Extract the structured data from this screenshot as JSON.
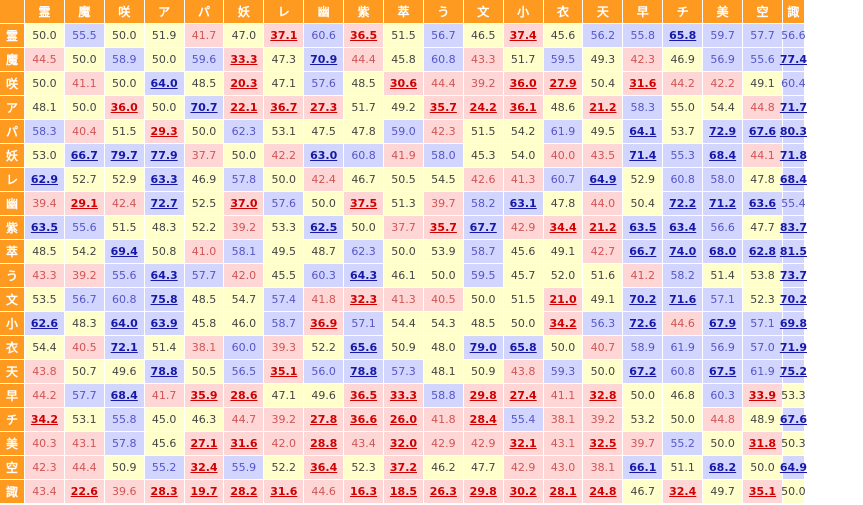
{
  "chart_data": {
    "type": "heatmap",
    "title": "",
    "header_labels": [
      "霊",
      "魔",
      "咲",
      "ア",
      "パ",
      "妖",
      "レ",
      "幽",
      "紫",
      "萃",
      "う",
      "文",
      "小",
      "衣",
      "天",
      "早",
      "チ",
      "美",
      "空",
      "諏"
    ],
    "labels": [
      "霊",
      "魔",
      "咲",
      "ア",
      "パ",
      "妖",
      "レ",
      "幽",
      "紫",
      "萃",
      "う",
      "文",
      "小",
      "衣",
      "天",
      "早",
      "チ",
      "美",
      "空",
      "諏"
    ],
    "values": [
      [
        50.0,
        55.5,
        50.0,
        51.9,
        41.7,
        47.0,
        37.1,
        60.6,
        36.5,
        51.5,
        56.7,
        46.5,
        37.4,
        45.6,
        56.2,
        55.8,
        65.8,
        59.7,
        57.7,
        56.6
      ],
      [
        44.5,
        50.0,
        58.9,
        50.0,
        59.6,
        33.3,
        47.3,
        70.9,
        44.4,
        45.8,
        60.8,
        43.3,
        51.7,
        59.5,
        49.3,
        42.3,
        46.9,
        56.9,
        55.6,
        77.4
      ],
      [
        50.0,
        41.1,
        50.0,
        64.0,
        48.5,
        20.3,
        47.1,
        57.6,
        48.5,
        30.6,
        44.4,
        39.2,
        36.0,
        27.9,
        50.4,
        31.6,
        44.2,
        42.2,
        49.1,
        60.4
      ],
      [
        48.1,
        50.0,
        36.0,
        50.0,
        70.7,
        22.1,
        36.7,
        27.3,
        51.7,
        49.2,
        35.7,
        24.2,
        36.1,
        48.6,
        21.2,
        58.3,
        55.0,
        54.4,
        44.8,
        71.7
      ],
      [
        58.3,
        40.4,
        51.5,
        29.3,
        50.0,
        62.3,
        53.1,
        47.5,
        47.8,
        59.0,
        42.3,
        51.5,
        54.2,
        61.9,
        49.5,
        64.1,
        53.7,
        72.9,
        67.6,
        80.3
      ],
      [
        53.0,
        66.7,
        79.7,
        77.9,
        37.7,
        50.0,
        42.2,
        63.0,
        60.8,
        41.9,
        58.0,
        45.3,
        54.0,
        40.0,
        43.5,
        71.4,
        55.3,
        68.4,
        44.1,
        71.8
      ],
      [
        62.9,
        52.7,
        52.9,
        63.3,
        46.9,
        57.8,
        50.0,
        42.4,
        46.7,
        50.5,
        54.5,
        42.6,
        41.3,
        60.7,
        64.9,
        52.9,
        60.8,
        58.0,
        47.8,
        68.4
      ],
      [
        39.4,
        29.1,
        42.4,
        72.7,
        52.5,
        37.0,
        57.6,
        50.0,
        37.5,
        51.3,
        39.7,
        58.2,
        63.1,
        47.8,
        44.0,
        50.4,
        72.2,
        71.2,
        63.6,
        55.4
      ],
      [
        63.5,
        55.6,
        51.5,
        48.3,
        52.2,
        39.2,
        53.3,
        62.5,
        50.0,
        37.7,
        35.7,
        67.7,
        42.9,
        34.4,
        21.2,
        63.5,
        63.4,
        56.6,
        47.7,
        83.7
      ],
      [
        48.5,
        54.2,
        69.4,
        50.8,
        41.0,
        58.1,
        49.5,
        48.7,
        62.3,
        50.0,
        53.9,
        58.7,
        45.6,
        49.1,
        42.7,
        66.7,
        74.0,
        68.0,
        62.8,
        81.5
      ],
      [
        43.3,
        39.2,
        55.6,
        64.3,
        57.7,
        42.0,
        45.5,
        60.3,
        64.3,
        46.1,
        50.0,
        59.5,
        45.7,
        52.0,
        51.6,
        41.2,
        58.2,
        51.4,
        53.8,
        73.7
      ],
      [
        53.5,
        56.7,
        60.8,
        75.8,
        48.5,
        54.7,
        57.4,
        41.8,
        32.3,
        41.3,
        40.5,
        50.0,
        51.5,
        21.0,
        49.1,
        70.2,
        71.6,
        57.1,
        52.3,
        70.2
      ],
      [
        62.6,
        48.3,
        64.0,
        63.9,
        45.8,
        46.0,
        58.7,
        36.9,
        57.1,
        54.4,
        54.3,
        48.5,
        50.0,
        34.2,
        56.3,
        72.6,
        44.6,
        67.9,
        57.1,
        69.8
      ],
      [
        54.4,
        40.5,
        72.1,
        51.4,
        38.1,
        60.0,
        39.3,
        52.2,
        65.6,
        50.9,
        48.0,
        79.0,
        65.8,
        50.0,
        40.7,
        58.9,
        61.9,
        56.9,
        57.0,
        71.9
      ],
      [
        43.8,
        50.7,
        49.6,
        78.8,
        50.5,
        56.5,
        35.1,
        56.0,
        78.8,
        57.3,
        48.1,
        50.9,
        43.8,
        59.3,
        50.0,
        67.2,
        60.8,
        67.5,
        61.9,
        75.2
      ],
      [
        44.2,
        57.7,
        68.4,
        41.7,
        35.9,
        28.6,
        47.1,
        49.6,
        36.5,
        33.3,
        58.8,
        29.8,
        27.4,
        41.1,
        32.8,
        50.0,
        46.8,
        60.3,
        33.9,
        53.3
      ],
      [
        34.2,
        53.1,
        55.8,
        45.0,
        46.3,
        44.7,
        39.2,
        27.8,
        36.6,
        26.0,
        41.8,
        28.4,
        55.4,
        38.1,
        39.2,
        53.2,
        50.0,
        44.8,
        48.9,
        67.6
      ],
      [
        40.3,
        43.1,
        57.8,
        45.6,
        27.1,
        31.6,
        42.0,
        28.8,
        43.4,
        32.0,
        42.9,
        42.9,
        32.1,
        43.1,
        32.5,
        39.7,
        55.2,
        50.0,
        31.8,
        50.3
      ],
      [
        42.3,
        44.4,
        50.9,
        55.2,
        32.4,
        55.9,
        52.2,
        36.4,
        52.3,
        37.2,
        46.2,
        47.7,
        42.9,
        43.0,
        38.1,
        66.1,
        51.1,
        68.2,
        50.0,
        64.9
      ],
      [
        43.4,
        22.6,
        39.6,
        28.3,
        19.7,
        28.2,
        31.6,
        44.6,
        16.3,
        18.5,
        26.3,
        29.8,
        30.2,
        28.1,
        24.8,
        46.7,
        32.4,
        49.7,
        35.1,
        50.0
      ]
    ]
  },
  "colors": {
    "header_bg": "#ff9a20",
    "header_text": "#ffffff",
    "neutral_bg": "#ffffcc",
    "low_bg": "#ffd6d6",
    "high_bg": "#d2d6ff",
    "strong_low_text": "#d00000",
    "strong_high_text": "#1818a8"
  }
}
